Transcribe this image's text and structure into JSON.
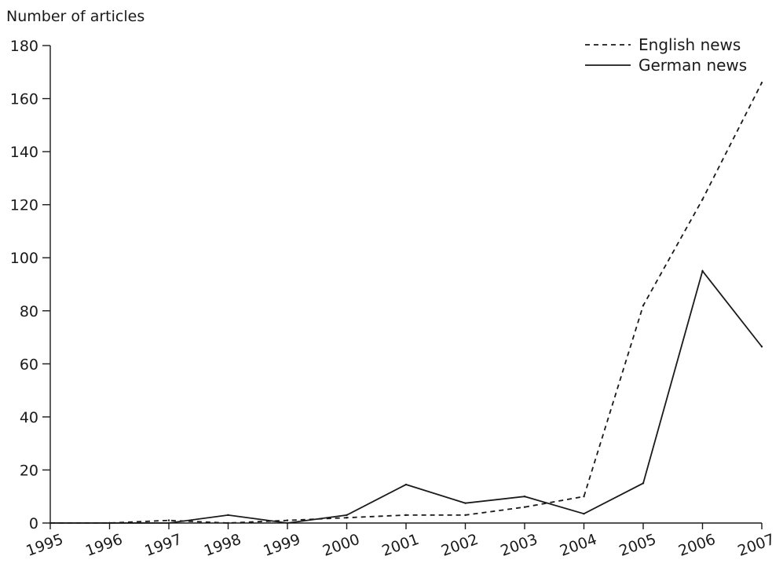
{
  "chart_data": {
    "type": "line",
    "title": "",
    "xlabel": "",
    "ylabel": "Number of articles",
    "ylim": [
      0,
      180
    ],
    "yticks": [
      "0",
      "20",
      "40",
      "60",
      "80",
      "100",
      "120",
      "140",
      "160",
      "180"
    ],
    "categories": [
      "1995",
      "1996",
      "1997",
      "1998",
      "1999",
      "2000",
      "2001",
      "2002",
      "2003",
      "2004",
      "2005",
      "2006",
      "2007"
    ],
    "grid": false,
    "legend_position": "top-right",
    "series": [
      {
        "name": "English news",
        "style": "dashed",
        "color": "#1a1a1a",
        "values": [
          0,
          0,
          1,
          0,
          1,
          2,
          3,
          3,
          6,
          10,
          82,
          122,
          166
        ]
      },
      {
        "name": "German news",
        "style": "solid",
        "color": "#1a1a1a",
        "values": [
          0,
          0,
          0,
          3,
          0,
          3,
          14.5,
          7.5,
          10,
          3.5,
          15,
          95,
          66.5
        ]
      }
    ]
  }
}
